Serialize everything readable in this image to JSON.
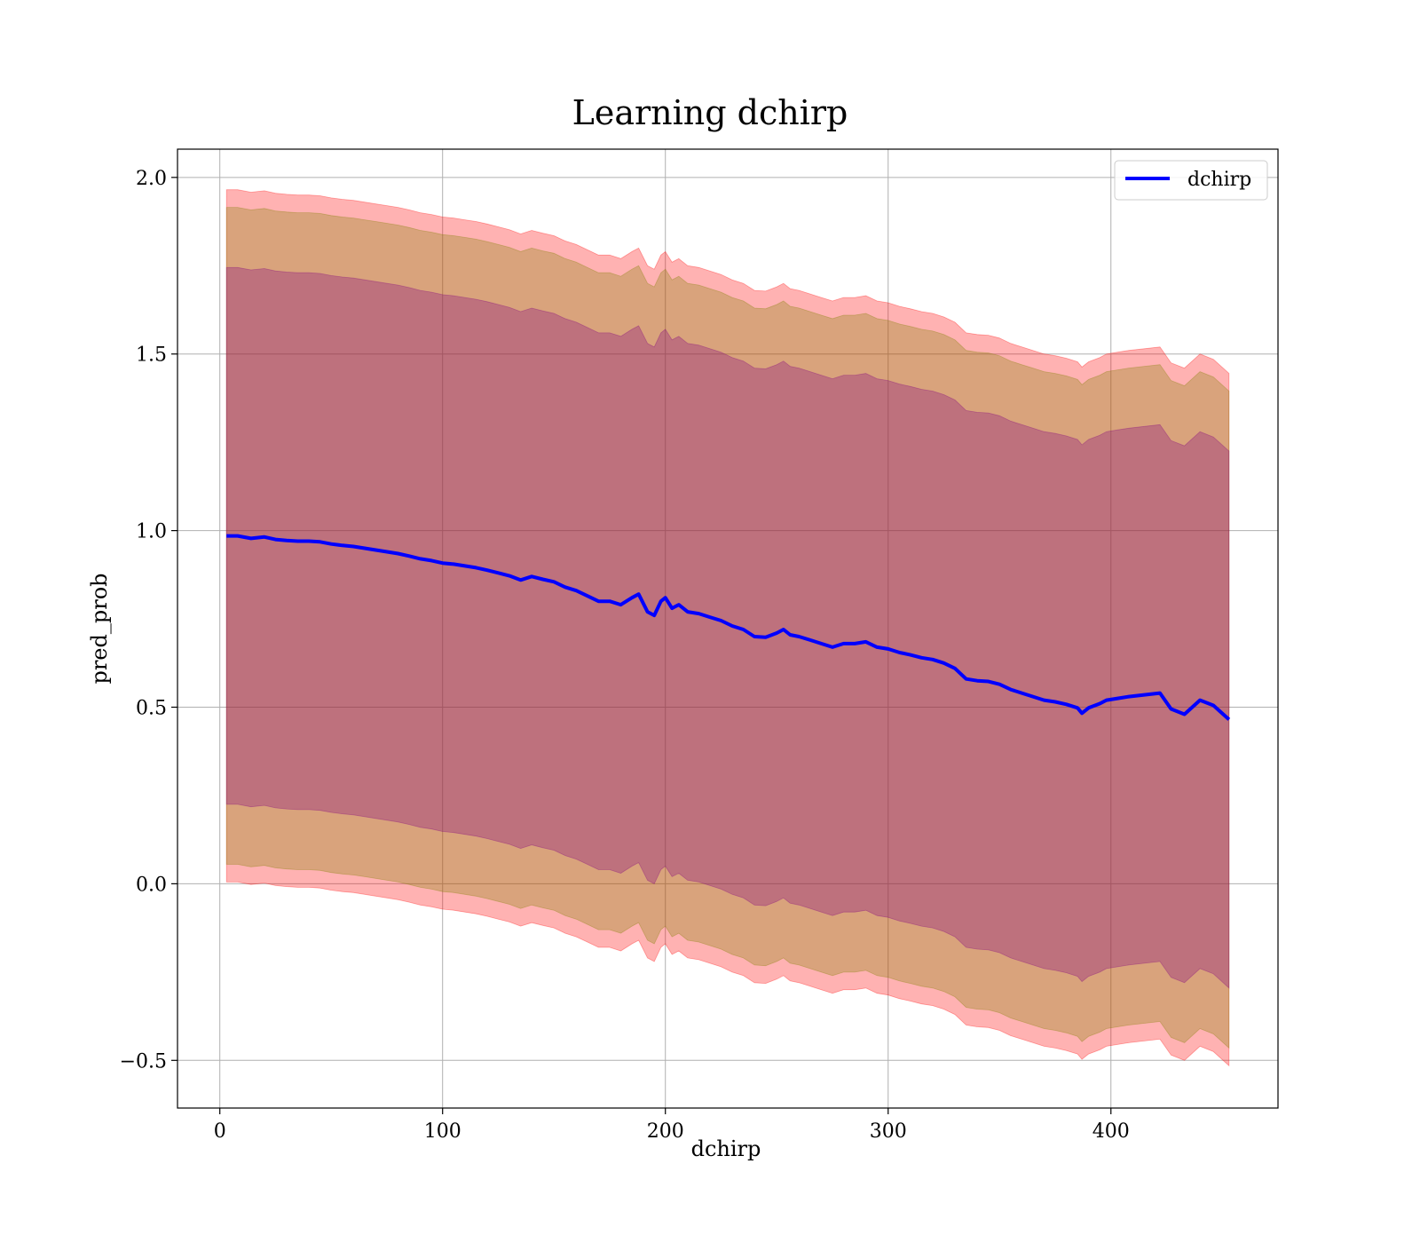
{
  "chart_data": {
    "type": "line",
    "title": "Learning dchirp",
    "xlabel": "dchirp",
    "ylabel": "pred_prob",
    "xlim": [
      -19,
      475
    ],
    "ylim": [
      -0.635,
      2.08
    ],
    "xticks": [
      0,
      100,
      200,
      300,
      400
    ],
    "xtick_labels": [
      "0",
      "100",
      "200",
      "300",
      "400"
    ],
    "yticks": [
      -0.5,
      0.0,
      0.5,
      1.0,
      1.5,
      2.0
    ],
    "ytick_labels": [
      "−0.5",
      "0.0",
      "0.5",
      "1.0",
      "1.5",
      "2.0"
    ],
    "grid": true,
    "legend": {
      "position": "top-right",
      "entries": [
        "dchirp"
      ]
    },
    "series": [
      {
        "name": "dchirp",
        "color": "#0000ff",
        "x": [
          3,
          8,
          14,
          20,
          25,
          30,
          35,
          40,
          45,
          50,
          55,
          60,
          65,
          70,
          75,
          80,
          85,
          90,
          95,
          100,
          105,
          110,
          115,
          120,
          125,
          130,
          135,
          140,
          145,
          150,
          155,
          160,
          165,
          170,
          175,
          180,
          185,
          188,
          192,
          195,
          198,
          200,
          203,
          206,
          210,
          215,
          220,
          225,
          230,
          235,
          240,
          245,
          250,
          253,
          256,
          260,
          265,
          270,
          275,
          280,
          285,
          290,
          295,
          300,
          305,
          310,
          315,
          320,
          325,
          330,
          335,
          340,
          345,
          350,
          355,
          360,
          365,
          370,
          375,
          380,
          385,
          387,
          390,
          395,
          398,
          403,
          408,
          415,
          422,
          427,
          433,
          440,
          446,
          453
        ],
        "y": [
          0.985,
          0.985,
          0.978,
          0.982,
          0.975,
          0.972,
          0.97,
          0.97,
          0.968,
          0.962,
          0.958,
          0.955,
          0.95,
          0.945,
          0.94,
          0.935,
          0.928,
          0.92,
          0.915,
          0.908,
          0.905,
          0.9,
          0.895,
          0.888,
          0.88,
          0.872,
          0.86,
          0.87,
          0.862,
          0.855,
          0.84,
          0.83,
          0.815,
          0.8,
          0.8,
          0.79,
          0.81,
          0.82,
          0.77,
          0.76,
          0.8,
          0.81,
          0.78,
          0.79,
          0.77,
          0.765,
          0.755,
          0.745,
          0.73,
          0.72,
          0.7,
          0.698,
          0.71,
          0.72,
          0.705,
          0.7,
          0.69,
          0.68,
          0.67,
          0.68,
          0.68,
          0.685,
          0.67,
          0.665,
          0.655,
          0.648,
          0.64,
          0.635,
          0.625,
          0.61,
          0.58,
          0.575,
          0.573,
          0.565,
          0.55,
          0.54,
          0.53,
          0.52,
          0.515,
          0.508,
          0.498,
          0.483,
          0.498,
          0.51,
          0.52,
          0.525,
          0.53,
          0.535,
          0.54,
          0.495,
          0.48,
          0.52,
          0.505,
          0.465
        ]
      }
    ],
    "bands": [
      {
        "name": "",
        "color": "#ff0000",
        "opacity": 0.3,
        "offset": 0.98
      },
      {
        "name": "",
        "color": "#808000",
        "opacity": 0.3,
        "offset": 0.93
      },
      {
        "name": "",
        "color": "#800080",
        "opacity": 0.3,
        "offset": 0.76
      }
    ]
  }
}
